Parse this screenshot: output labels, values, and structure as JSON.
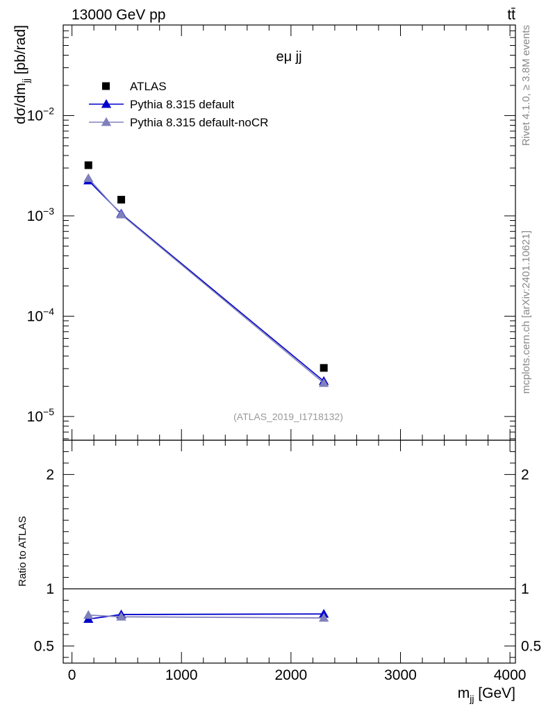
{
  "header": {
    "left": "13000 GeV pp",
    "right": "tt̄"
  },
  "side_labels": {
    "rivet": "Rivet 4.1.0, ≥ 3.8M events",
    "mcplots": "mcplots.cern.ch [arXiv:2401.10621]"
  },
  "chart_data": [
    {
      "type": "line",
      "panel": "main",
      "title": "eμ jj",
      "watermark": "(ATLAS_2019_I1718132)",
      "xlabel": "m_jj [GeV]",
      "ylabel": "dσ/dm_jj [pb/rad]",
      "yscale": "log",
      "xlim": [
        -80,
        4050
      ],
      "ylim": [
        5.8e-06,
        0.08
      ],
      "yticks": [
        {
          "value": 0.01,
          "label": "10^-2"
        },
        {
          "value": 0.001,
          "label": "10^-3"
        },
        {
          "value": 0.0001,
          "label": "10^-4"
        },
        {
          "value": 1e-05,
          "label": "10^-5"
        }
      ],
      "legend_position": "top-left",
      "series": [
        {
          "name": "ATLAS",
          "marker": "square",
          "color": "#000000",
          "x": [
            150,
            450,
            2300
          ],
          "y": [
            0.0032,
            0.00145,
            3.05e-05
          ]
        },
        {
          "name": "Pythia 8.315 default",
          "marker": "triangle",
          "color": "#0000cc",
          "x": [
            150,
            450,
            2300
          ],
          "y": [
            0.00225,
            0.00105,
            2.25e-05
          ]
        },
        {
          "name": "Pythia 8.315 default-noCR",
          "marker": "triangle",
          "color": "#8080bb",
          "x": [
            150,
            450,
            2300
          ],
          "y": [
            0.00237,
            0.00103,
            2.15e-05
          ]
        }
      ]
    },
    {
      "type": "line",
      "panel": "ratio",
      "ylabel": "Ratio to ATLAS",
      "xlabel": "m_jj [GeV]",
      "xlim": [
        -80,
        4050
      ],
      "ylim": [
        0.35,
        2.3
      ],
      "xticks": [
        0,
        1000,
        2000,
        3000,
        4000
      ],
      "yticks": [
        0.5,
        1,
        2
      ],
      "reference_line": 1,
      "series": [
        {
          "name": "Pythia 8.315 default",
          "color": "#0000cc",
          "x": [
            150,
            450,
            2300
          ],
          "y": [
            0.735,
            0.775,
            0.78
          ],
          "err": [
            0.005,
            0.008,
            0.025
          ]
        },
        {
          "name": "Pythia 8.315 default-noCR",
          "color": "#8080bb",
          "x": [
            150,
            450,
            2300
          ],
          "y": [
            0.77,
            0.755,
            0.745
          ],
          "err": [
            0.005,
            0.008,
            0.025
          ]
        }
      ]
    }
  ]
}
